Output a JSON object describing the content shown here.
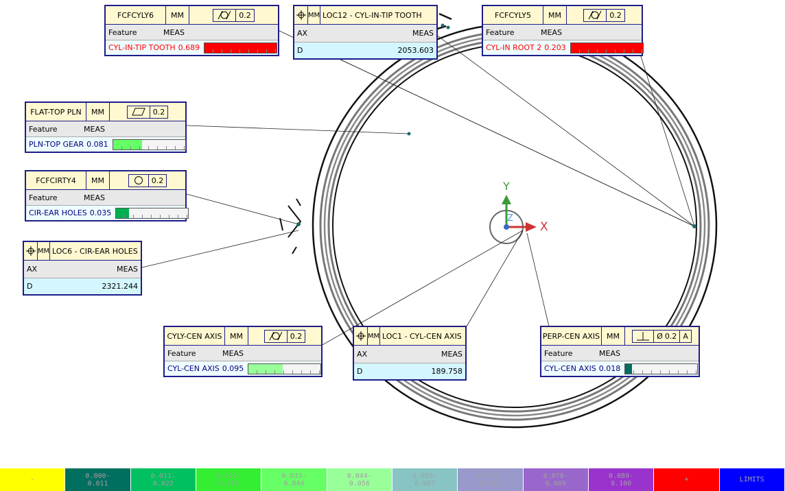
{
  "fcf": [
    {
      "name": "FCFCYLY6",
      "unit": "MM",
      "symbol": "cylindricity",
      "tolerance": 0.2,
      "feature_header": "Feature",
      "meas_header": "MEAS",
      "feature": "CYL-IN-TIP TOOTH",
      "meas": 0.689,
      "bar_color": "#ff0000",
      "text_color": "#ff0000"
    },
    {
      "name": "FCFCYLY5",
      "unit": "MM",
      "symbol": "cylindricity",
      "tolerance": 0.2,
      "feature_header": "Feature",
      "meas_header": "MEAS",
      "feature": "CYL-IN ROOT 2",
      "meas": 0.203,
      "bar_color": "#ff0000",
      "text_color": "#ff0000"
    },
    {
      "name": "FLAT-TOP PLN",
      "unit": "MM",
      "symbol": "flatness",
      "tolerance": 0.2,
      "feature_header": "Feature",
      "meas_header": "MEAS",
      "feature": "PLN-TOP GEAR",
      "meas": 0.081,
      "bar_color": "#66ff66",
      "text_color": "#000080"
    },
    {
      "name": "FCFCIRTY4",
      "unit": "MM",
      "symbol": "circularity",
      "tolerance": 0.2,
      "feature_header": "Feature",
      "meas_header": "MEAS",
      "feature": "CIR-EAR HOLES",
      "meas": 0.035,
      "bar_color": "#00b050",
      "text_color": "#000080"
    },
    {
      "name": "CYLY-CEN AXIS",
      "unit": "MM",
      "symbol": "cylindricity",
      "tolerance": 0.2,
      "feature_header": "Feature",
      "meas_header": "MEAS",
      "feature": "CYL-CEN AXIS",
      "meas": 0.095,
      "bar_color": "#99ff99",
      "text_color": "#000080"
    },
    {
      "name": "PERP-CEN AXIS",
      "unit": "MM",
      "symbol": "perpendicularity",
      "diameter_sign": "Ø",
      "tolerance": 0.2,
      "datum": "A",
      "feature_header": "Feature",
      "meas_header": "MEAS",
      "feature": "CYL-CEN AXIS",
      "meas": 0.018,
      "bar_color": "#006f5f",
      "text_color": "#000080"
    }
  ],
  "loc": [
    {
      "unit": "MM",
      "title": "LOC12 - CYL-IN-TIP TOOTH",
      "axis_header": "AX",
      "meas_header": "MEAS",
      "axis": "D",
      "meas": 2053.603
    },
    {
      "unit": "MM",
      "title": "LOC6 - CIR-EAR HOLES",
      "axis_header": "AX",
      "meas_header": "MEAS",
      "axis": "D",
      "meas": 2321.244
    },
    {
      "unit": "MM",
      "title": "LOC1 - CYL-CEN AXIS",
      "axis_header": "AX",
      "meas_header": "MEAS",
      "axis": "D",
      "meas": 189.758
    }
  ],
  "axes": {
    "x": "X",
    "y": "Y",
    "z": "Z"
  },
  "legend": [
    {
      "lines": [
        "-"
      ],
      "color": "#ffff00"
    },
    {
      "lines": [
        "0.000-",
        "0.011"
      ],
      "color": "#006f5f"
    },
    {
      "lines": [
        "0.011-",
        "0.022"
      ],
      "color": "#00c060"
    },
    {
      "lines": [
        "0.022-",
        "0.033"
      ],
      "color": "#33ee33"
    },
    {
      "lines": [
        "0.033-",
        "0.044"
      ],
      "color": "#66ff66"
    },
    {
      "lines": [
        "0.044-",
        "0.056"
      ],
      "color": "#99ff99"
    },
    {
      "lines": [
        "0.056-",
        "0.067"
      ],
      "color": "#88c4c4"
    },
    {
      "lines": [
        "0.067-",
        "0.078"
      ],
      "color": "#9999cc"
    },
    {
      "lines": [
        "0.078-",
        "0.089"
      ],
      "color": "#9966cc"
    },
    {
      "lines": [
        "0.089-",
        "0.100"
      ],
      "color": "#9933cc"
    },
    {
      "lines": [
        "+"
      ],
      "color": "#ff0000"
    },
    {
      "lines": [
        "LIMITS"
      ],
      "color": "#0000ff"
    }
  ]
}
